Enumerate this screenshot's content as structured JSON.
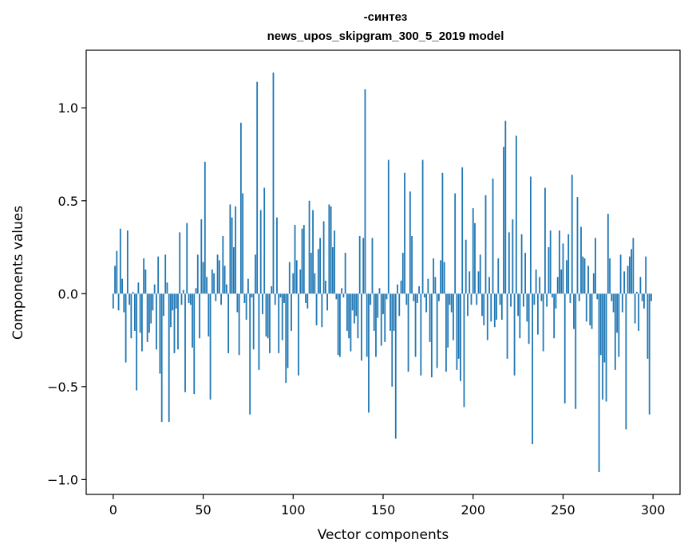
{
  "chart_data": {
    "type": "bar",
    "title": "-синтез\nnews_upos_skipgram_300_5_2019 model",
    "title_lines": [
      "-синтез",
      "news_upos_skipgram_300_5_2019 model"
    ],
    "xlabel": "Vector components",
    "ylabel": "Components values",
    "xlim": [
      -15,
      315
    ],
    "ylim": [
      -1.08,
      1.31
    ],
    "xticks": [
      0,
      50,
      100,
      150,
      200,
      250,
      300
    ],
    "xtick_labels": [
      "0",
      "50",
      "100",
      "150",
      "200",
      "250",
      "300"
    ],
    "yticks": [
      -1.0,
      -0.5,
      0.0,
      0.5,
      1.0
    ],
    "ytick_labels": [
      "−1.0",
      "−0.5",
      "0.0",
      "0.5",
      "1.0"
    ],
    "bar_color": "#1f77b4",
    "grid": false,
    "legend": "none",
    "x": "components 0-299",
    "values": [
      -0.08,
      0.15,
      0.23,
      -0.09,
      0.35,
      0.08,
      -0.1,
      -0.37,
      0.34,
      -0.06,
      -0.24,
      0.01,
      -0.2,
      -0.52,
      0.06,
      -0.21,
      -0.31,
      0.19,
      0.13,
      -0.26,
      -0.21,
      -0.16,
      -0.09,
      0.05,
      -0.3,
      0.2,
      -0.43,
      -0.69,
      -0.12,
      0.21,
      0.06,
      -0.69,
      -0.18,
      -0.09,
      -0.32,
      -0.08,
      -0.3,
      0.33,
      -0.06,
      0.02,
      -0.53,
      0.38,
      -0.05,
      -0.06,
      -0.29,
      -0.54,
      0.03,
      0.21,
      -0.24,
      0.4,
      0.17,
      0.71,
      0.09,
      -0.23,
      -0.57,
      0.13,
      0.11,
      -0.04,
      0.21,
      0.18,
      -0.06,
      0.31,
      0.15,
      0.05,
      -0.32,
      0.48,
      0.41,
      0.25,
      0.47,
      -0.1,
      -0.33,
      0.92,
      0.54,
      -0.05,
      -0.14,
      0.08,
      -0.65,
      -0.02,
      -0.3,
      0.21,
      1.14,
      -0.41,
      0.45,
      -0.11,
      0.57,
      -0.23,
      -0.24,
      -0.32,
      0.04,
      1.19,
      -0.06,
      0.41,
      -0.32,
      -0.02,
      -0.25,
      -0.05,
      -0.48,
      -0.4,
      0.17,
      -0.2,
      0.11,
      0.37,
      0.18,
      -0.44,
      0.13,
      0.35,
      0.37,
      -0.05,
      -0.08,
      0.5,
      0.22,
      0.45,
      0.11,
      -0.17,
      0.24,
      0.3,
      -0.18,
      0.39,
      0.07,
      -0.09,
      0.48,
      0.47,
      0.25,
      0.34,
      -0.03,
      -0.33,
      -0.34,
      0.03,
      -0.02,
      0.22,
      -0.2,
      -0.24,
      -0.31,
      -0.09,
      -0.16,
      -0.12,
      -0.24,
      0.31,
      -0.36,
      0.3,
      1.1,
      -0.34,
      -0.64,
      -0.06,
      0.3,
      -0.2,
      -0.34,
      -0.13,
      0.03,
      -0.28,
      -0.11,
      -0.26,
      -0.03,
      0.72,
      -0.2,
      -0.5,
      -0.2,
      -0.78,
      0.05,
      -0.12,
      0.07,
      0.22,
      0.65,
      -0.06,
      -0.42,
      0.55,
      0.31,
      -0.04,
      -0.34,
      -0.05,
      0.04,
      -0.44,
      0.72,
      -0.02,
      -0.1,
      0.08,
      -0.26,
      -0.45,
      0.19,
      0.09,
      -0.4,
      -0.04,
      0.18,
      0.65,
      0.17,
      -0.42,
      -0.29,
      -0.06,
      -0.1,
      -0.25,
      0.54,
      -0.41,
      -0.35,
      -0.47,
      0.68,
      -0.61,
      0.29,
      -0.12,
      0.12,
      -0.06,
      0.46,
      0.38,
      -0.06,
      0.12,
      0.21,
      -0.12,
      -0.17,
      0.53,
      -0.25,
      0.09,
      -0.15,
      0.62,
      -0.18,
      -0.14,
      0.19,
      -0.06,
      -0.14,
      0.79,
      0.93,
      -0.35,
      0.33,
      -0.07,
      0.4,
      -0.44,
      0.85,
      -0.12,
      -0.24,
      0.32,
      -0.07,
      0.22,
      -0.15,
      -0.27,
      0.63,
      -0.81,
      -0.06,
      0.13,
      -0.22,
      0.09,
      -0.04,
      -0.31,
      0.57,
      -0.07,
      0.25,
      0.34,
      -0.02,
      -0.24,
      -0.08,
      0.09,
      0.34,
      0.13,
      0.27,
      -0.59,
      0.18,
      0.32,
      -0.05,
      0.64,
      -0.19,
      -0.62,
      0.52,
      -0.04,
      0.36,
      0.2,
      0.19,
      -0.15,
      0.15,
      -0.17,
      -0.19,
      0.11,
      0.3,
      -0.03,
      -0.96,
      -0.33,
      -0.57,
      -0.37,
      -0.58,
      0.43,
      0.19,
      -0.04,
      -0.1,
      -0.41,
      -0.21,
      -0.34,
      0.21,
      -0.1,
      0.12,
      -0.73,
      0.15,
      0.2,
      0.24,
      0.3,
      -0.16,
      0.01,
      -0.2,
      0.09,
      -0.04,
      -0.08,
      0.2,
      -0.35,
      -0.65,
      -0.04
    ]
  }
}
